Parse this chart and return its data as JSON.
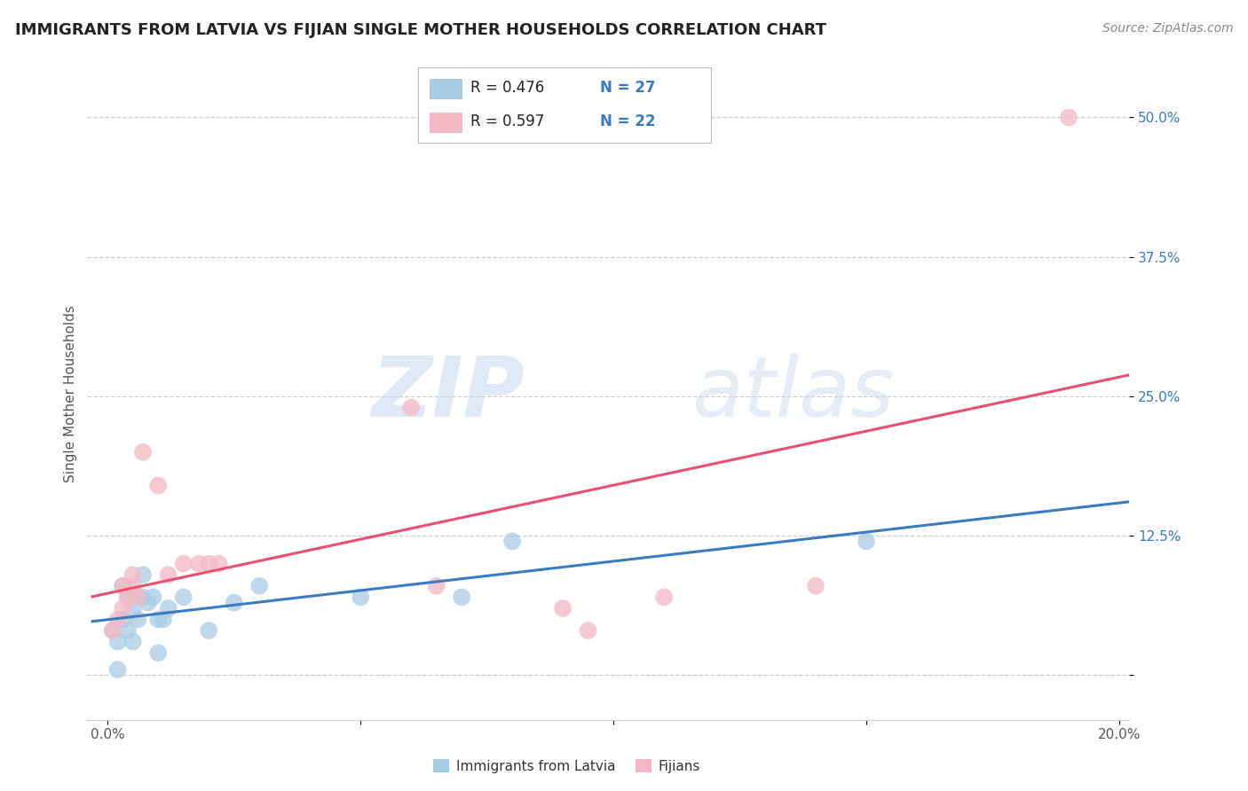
{
  "title": "IMMIGRANTS FROM LATVIA VS FIJIAN SINGLE MOTHER HOUSEHOLDS CORRELATION CHART",
  "source": "Source: ZipAtlas.com",
  "ylabel": "Single Mother Households",
  "blue_color": "#a8cce4",
  "pink_color": "#f4b8c4",
  "blue_line_color": "#3a7abf",
  "pink_line_color": "#e85070",
  "blue_scatter": [
    [
      0.001,
      0.04
    ],
    [
      0.002,
      0.03
    ],
    [
      0.002,
      0.005
    ],
    [
      0.003,
      0.05
    ],
    [
      0.003,
      0.08
    ],
    [
      0.004,
      0.07
    ],
    [
      0.004,
      0.04
    ],
    [
      0.005,
      0.06
    ],
    [
      0.005,
      0.03
    ],
    [
      0.006,
      0.07
    ],
    [
      0.006,
      0.05
    ],
    [
      0.007,
      0.07
    ],
    [
      0.007,
      0.09
    ],
    [
      0.008,
      0.065
    ],
    [
      0.009,
      0.07
    ],
    [
      0.01,
      0.05
    ],
    [
      0.01,
      0.02
    ],
    [
      0.011,
      0.05
    ],
    [
      0.012,
      0.06
    ],
    [
      0.015,
      0.07
    ],
    [
      0.02,
      0.04
    ],
    [
      0.025,
      0.065
    ],
    [
      0.03,
      0.08
    ],
    [
      0.05,
      0.07
    ],
    [
      0.07,
      0.07
    ],
    [
      0.08,
      0.12
    ],
    [
      0.15,
      0.12
    ]
  ],
  "pink_scatter": [
    [
      0.001,
      0.04
    ],
    [
      0.002,
      0.05
    ],
    [
      0.003,
      0.06
    ],
    [
      0.003,
      0.08
    ],
    [
      0.004,
      0.07
    ],
    [
      0.005,
      0.08
    ],
    [
      0.005,
      0.09
    ],
    [
      0.006,
      0.07
    ],
    [
      0.007,
      0.2
    ],
    [
      0.01,
      0.17
    ],
    [
      0.012,
      0.09
    ],
    [
      0.015,
      0.1
    ],
    [
      0.018,
      0.1
    ],
    [
      0.02,
      0.1
    ],
    [
      0.022,
      0.1
    ],
    [
      0.06,
      0.24
    ],
    [
      0.065,
      0.08
    ],
    [
      0.09,
      0.06
    ],
    [
      0.095,
      0.04
    ],
    [
      0.11,
      0.07
    ],
    [
      0.14,
      0.08
    ],
    [
      0.19,
      0.5
    ]
  ],
  "watermark_zip": "ZIP",
  "watermark_atlas": "atlas",
  "ytick_positions": [
    0.0,
    0.125,
    0.25,
    0.375,
    0.5
  ],
  "ytick_labels": [
    "",
    "12.5%",
    "25.0%",
    "37.5%",
    "50.0%"
  ],
  "xtick_positions": [
    0.0,
    0.05,
    0.1,
    0.15,
    0.2
  ],
  "xtick_labels": [
    "0.0%",
    "",
    "",
    "",
    "20.0%"
  ],
  "grid_color": "#cccccc",
  "title_fontsize": 13
}
